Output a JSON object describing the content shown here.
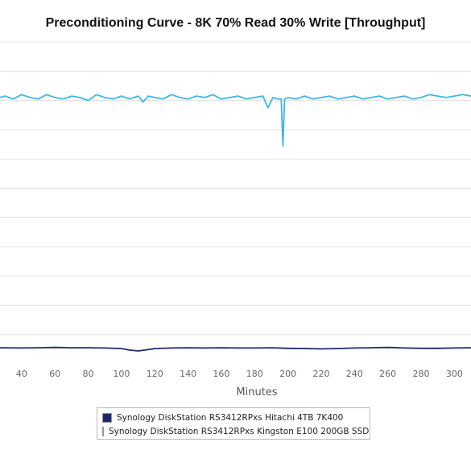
{
  "chart_data": {
    "type": "line",
    "title": "Preconditioning Curve - 8K 70% Read 30% Write [Throughput]",
    "xlabel": "Minutes",
    "ylabel": "",
    "xlim": [
      27,
      310
    ],
    "ylim": [
      0,
      11
    ],
    "x_ticks": [
      40,
      60,
      80,
      100,
      120,
      140,
      160,
      180,
      200,
      220,
      240,
      260,
      280,
      300
    ],
    "grid": "horizontal",
    "legend_position": "bottom",
    "series": [
      {
        "name": "Synology DiskStation RS3412RPxs Hitachi 4TB 7K400",
        "color": "#1a2a6c",
        "x": [
          27,
          40,
          50,
          60,
          70,
          80,
          90,
          100,
          105,
          110,
          115,
          120,
          130,
          140,
          150,
          160,
          170,
          180,
          190,
          200,
          210,
          220,
          230,
          240,
          250,
          260,
          270,
          280,
          290,
          300,
          310
        ],
        "y": [
          0.55,
          0.54,
          0.55,
          0.56,
          0.55,
          0.55,
          0.54,
          0.52,
          0.47,
          0.44,
          0.48,
          0.52,
          0.54,
          0.55,
          0.54,
          0.55,
          0.54,
          0.54,
          0.55,
          0.53,
          0.52,
          0.51,
          0.52,
          0.54,
          0.55,
          0.56,
          0.54,
          0.53,
          0.53,
          0.54,
          0.55
        ]
      },
      {
        "name": "Synology DiskStation RS3412RPxs Kingston E100 200GB SSD",
        "color": "#3db7e4",
        "x": [
          27,
          30,
          35,
          40,
          45,
          50,
          55,
          60,
          65,
          70,
          75,
          80,
          85,
          90,
          95,
          100,
          105,
          110,
          113,
          116,
          120,
          125,
          130,
          135,
          140,
          145,
          150,
          155,
          160,
          165,
          170,
          175,
          180,
          185,
          188,
          191,
          194,
          196,
          197,
          198,
          200,
          205,
          210,
          215,
          220,
          225,
          230,
          235,
          240,
          245,
          250,
          255,
          260,
          265,
          270,
          275,
          280,
          285,
          290,
          295,
          300,
          305,
          310
        ],
        "y": [
          9.1,
          9.15,
          9.05,
          9.2,
          9.1,
          9.05,
          9.2,
          9.1,
          9.05,
          9.15,
          9.1,
          9.0,
          9.2,
          9.1,
          9.05,
          9.15,
          9.05,
          9.15,
          8.95,
          9.15,
          9.1,
          9.05,
          9.2,
          9.1,
          9.05,
          9.15,
          9.1,
          9.2,
          9.05,
          9.1,
          9.15,
          9.05,
          9.1,
          9.15,
          8.75,
          9.1,
          9.05,
          9.05,
          7.45,
          9.05,
          9.1,
          9.05,
          9.15,
          9.05,
          9.1,
          9.15,
          9.05,
          9.1,
          9.15,
          9.05,
          9.1,
          9.15,
          9.05,
          9.1,
          9.15,
          9.05,
          9.1,
          9.2,
          9.15,
          9.1,
          9.15,
          9.2,
          9.15
        ]
      }
    ]
  }
}
